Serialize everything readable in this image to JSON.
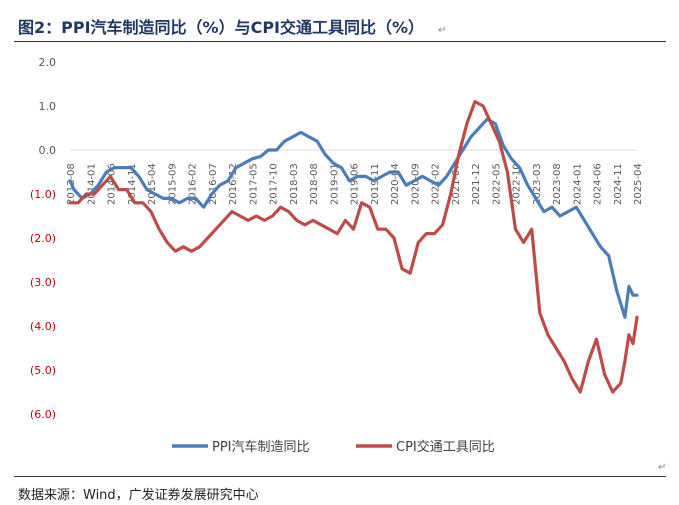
{
  "page": {
    "title": "图2：PPI汽车制造同比（%）与CPI交通工具同比（%）",
    "source": "数据来源：Wind，广发证券发展研究中心",
    "return_mark": "↵"
  },
  "colors": {
    "ppi": "#4a7ebb",
    "cpi": "#be4b48",
    "negative_tick": "#c00000",
    "positive_tick": "#595959"
  },
  "chart_data": {
    "type": "line",
    "ylim": [
      -6.0,
      2.0
    ],
    "y_ticks": [
      {
        "value": 2.0,
        "label": "2.0"
      },
      {
        "value": 1.0,
        "label": "1.0"
      },
      {
        "value": 0.0,
        "label": "0.0"
      },
      {
        "value": -1.0,
        "label": "(1.0)"
      },
      {
        "value": -2.0,
        "label": "(2.0)"
      },
      {
        "value": -3.0,
        "label": "(3.0)"
      },
      {
        "value": -4.0,
        "label": "(4.0)"
      },
      {
        "value": -5.0,
        "label": "(5.0)"
      },
      {
        "value": -6.0,
        "label": "(6.0)"
      }
    ],
    "x_start": "2013-08",
    "x_end": "2025-04",
    "x_ticks": [
      "2013-08",
      "2014-01",
      "2014-06",
      "2014-11",
      "2015-04",
      "2015-09",
      "2016-02",
      "2016-07",
      "2016-12",
      "2017-05",
      "2017-10",
      "2018-03",
      "2018-08",
      "2019-01",
      "2019-06",
      "2019-11",
      "2020-04",
      "2020-09",
      "2021-02",
      "2021-07",
      "2021-12",
      "2022-05",
      "2022-10",
      "2023-03",
      "2023-08",
      "2024-01",
      "2024-06",
      "2024-11",
      "2025-04"
    ],
    "legend_position": "bottom",
    "series": [
      {
        "name": "PPI汽车制造同比",
        "color": "#4a7ebb",
        "points": [
          [
            "2013-08",
            -0.7
          ],
          [
            "2013-09",
            -0.9
          ],
          [
            "2013-11",
            -1.1
          ],
          [
            "2014-01",
            -1.0
          ],
          [
            "2014-03",
            -0.8
          ],
          [
            "2014-05",
            -0.5
          ],
          [
            "2014-07",
            -0.4
          ],
          [
            "2014-09",
            -0.4
          ],
          [
            "2014-11",
            -0.4
          ],
          [
            "2015-01",
            -0.6
          ],
          [
            "2015-03",
            -0.9
          ],
          [
            "2015-05",
            -1.0
          ],
          [
            "2015-07",
            -1.1
          ],
          [
            "2015-09",
            -1.1
          ],
          [
            "2015-11",
            -1.2
          ],
          [
            "2016-01",
            -1.1
          ],
          [
            "2016-03",
            -1.1
          ],
          [
            "2016-05",
            -1.3
          ],
          [
            "2016-07",
            -1.0
          ],
          [
            "2016-09",
            -0.8
          ],
          [
            "2016-11",
            -0.7
          ],
          [
            "2017-01",
            -0.4
          ],
          [
            "2017-03",
            -0.3
          ],
          [
            "2017-05",
            -0.2
          ],
          [
            "2017-07",
            -0.15
          ],
          [
            "2017-09",
            0.0
          ],
          [
            "2017-11",
            0.0
          ],
          [
            "2018-01",
            0.2
          ],
          [
            "2018-03",
            0.3
          ],
          [
            "2018-05",
            0.4
          ],
          [
            "2018-07",
            0.3
          ],
          [
            "2018-09",
            0.2
          ],
          [
            "2018-11",
            -0.1
          ],
          [
            "2019-01",
            -0.3
          ],
          [
            "2019-03",
            -0.4
          ],
          [
            "2019-05",
            -0.7
          ],
          [
            "2019-07",
            -0.6
          ],
          [
            "2019-09",
            -0.6
          ],
          [
            "2019-11",
            -0.7
          ],
          [
            "2020-01",
            -0.6
          ],
          [
            "2020-03",
            -0.5
          ],
          [
            "2020-05",
            -0.5
          ],
          [
            "2020-07",
            -0.8
          ],
          [
            "2020-09",
            -0.7
          ],
          [
            "2020-11",
            -0.6
          ],
          [
            "2021-01",
            -0.7
          ],
          [
            "2021-03",
            -0.8
          ],
          [
            "2021-05",
            -0.6
          ],
          [
            "2021-07",
            -0.3
          ],
          [
            "2021-09",
            0.0
          ],
          [
            "2021-11",
            0.3
          ],
          [
            "2022-01",
            0.5
          ],
          [
            "2022-03",
            0.7
          ],
          [
            "2022-05",
            0.6
          ],
          [
            "2022-07",
            0.1
          ],
          [
            "2022-09",
            -0.2
          ],
          [
            "2022-11",
            -0.4
          ],
          [
            "2023-01",
            -0.8
          ],
          [
            "2023-03",
            -1.1
          ],
          [
            "2023-05",
            -1.4
          ],
          [
            "2023-07",
            -1.3
          ],
          [
            "2023-09",
            -1.5
          ],
          [
            "2023-11",
            -1.4
          ],
          [
            "2024-01",
            -1.3
          ],
          [
            "2024-03",
            -1.6
          ],
          [
            "2024-05",
            -1.9
          ],
          [
            "2024-07",
            -2.2
          ],
          [
            "2024-09",
            -2.4
          ],
          [
            "2024-11",
            -3.2
          ],
          [
            "2025-01",
            -3.8
          ],
          [
            "2025-02",
            -3.1
          ],
          [
            "2025-03",
            -3.3
          ],
          [
            "2025-04",
            -3.3
          ]
        ]
      },
      {
        "name": "CPI交通工具同比",
        "color": "#be4b48",
        "points": [
          [
            "2013-08",
            -1.2
          ],
          [
            "2013-10",
            -1.2
          ],
          [
            "2013-12",
            -1.0
          ],
          [
            "2014-02",
            -1.0
          ],
          [
            "2014-04",
            -0.8
          ],
          [
            "2014-06",
            -0.6
          ],
          [
            "2014-08",
            -0.9
          ],
          [
            "2014-10",
            -0.9
          ],
          [
            "2014-12",
            -1.2
          ],
          [
            "2015-02",
            -1.2
          ],
          [
            "2015-04",
            -1.4
          ],
          [
            "2015-06",
            -1.8
          ],
          [
            "2015-08",
            -2.1
          ],
          [
            "2015-10",
            -2.3
          ],
          [
            "2015-12",
            -2.2
          ],
          [
            "2016-02",
            -2.3
          ],
          [
            "2016-04",
            -2.2
          ],
          [
            "2016-06",
            -2.0
          ],
          [
            "2016-08",
            -1.8
          ],
          [
            "2016-10",
            -1.6
          ],
          [
            "2016-12",
            -1.4
          ],
          [
            "2017-02",
            -1.5
          ],
          [
            "2017-04",
            -1.6
          ],
          [
            "2017-06",
            -1.5
          ],
          [
            "2017-08",
            -1.6
          ],
          [
            "2017-10",
            -1.5
          ],
          [
            "2017-12",
            -1.3
          ],
          [
            "2018-02",
            -1.4
          ],
          [
            "2018-04",
            -1.6
          ],
          [
            "2018-06",
            -1.7
          ],
          [
            "2018-08",
            -1.6
          ],
          [
            "2018-10",
            -1.7
          ],
          [
            "2018-12",
            -1.8
          ],
          [
            "2019-02",
            -1.9
          ],
          [
            "2019-04",
            -1.6
          ],
          [
            "2019-06",
            -1.8
          ],
          [
            "2019-08",
            -1.2
          ],
          [
            "2019-10",
            -1.3
          ],
          [
            "2019-12",
            -1.8
          ],
          [
            "2020-02",
            -1.8
          ],
          [
            "2020-04",
            -2.0
          ],
          [
            "2020-06",
            -2.7
          ],
          [
            "2020-08",
            -2.8
          ],
          [
            "2020-10",
            -2.1
          ],
          [
            "2020-12",
            -1.9
          ],
          [
            "2021-02",
            -1.9
          ],
          [
            "2021-04",
            -1.7
          ],
          [
            "2021-06",
            -1.0
          ],
          [
            "2021-08",
            -0.1
          ],
          [
            "2021-10",
            0.6
          ],
          [
            "2021-12",
            1.1
          ],
          [
            "2022-02",
            1.0
          ],
          [
            "2022-04",
            0.6
          ],
          [
            "2022-06",
            0.2
          ],
          [
            "2022-08",
            -0.5
          ],
          [
            "2022-10",
            -1.8
          ],
          [
            "2022-12",
            -2.1
          ],
          [
            "2023-02",
            -1.8
          ],
          [
            "2023-04",
            -3.7
          ],
          [
            "2023-06",
            -4.2
          ],
          [
            "2023-08",
            -4.5
          ],
          [
            "2023-10",
            -4.8
          ],
          [
            "2023-12",
            -5.2
          ],
          [
            "2024-02",
            -5.5
          ],
          [
            "2024-04",
            -4.8
          ],
          [
            "2024-06",
            -4.3
          ],
          [
            "2024-08",
            -5.1
          ],
          [
            "2024-10",
            -5.5
          ],
          [
            "2024-12",
            -5.3
          ],
          [
            "2025-01",
            -4.8
          ],
          [
            "2025-02",
            -4.2
          ],
          [
            "2025-03",
            -4.4
          ],
          [
            "2025-04",
            -3.8
          ]
        ]
      }
    ]
  }
}
